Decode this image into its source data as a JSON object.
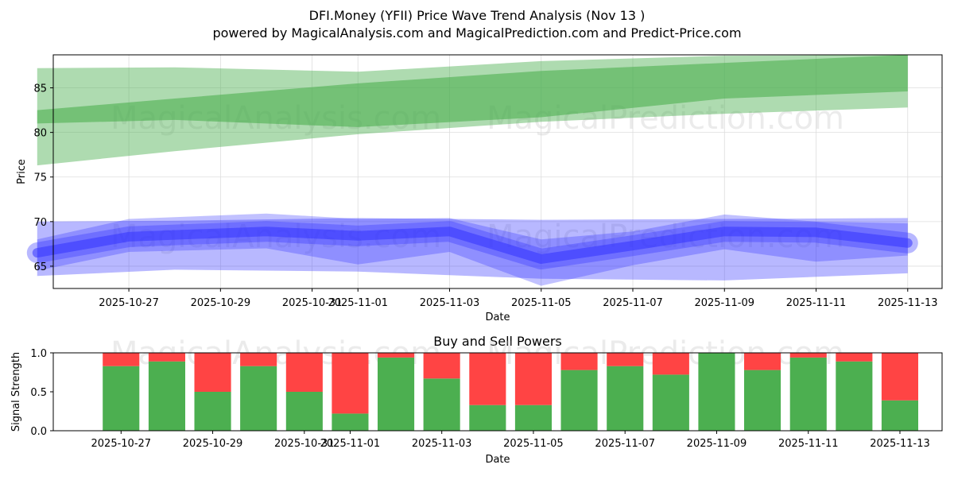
{
  "title": "DFI.Money (YFII) Price Wave Trend Analysis (Nov 13 )",
  "subtitle": "powered by MagicalAnalysis.com and MagicalPrediction.com and Predict-Price.com",
  "watermarks": [
    "MagicalAnalysis.com",
    "MagicalPrediction.com"
  ],
  "colors": {
    "green_band": "#4caf50",
    "blue_band": "#3333ff",
    "buy": "#4caf50",
    "sell": "#ff4444",
    "grid": "#dddddd"
  },
  "chart_data": [
    {
      "type": "area",
      "title": "",
      "xlabel": "Date",
      "ylabel": "Price",
      "ylim": [
        62.5,
        88.7
      ],
      "xlim": [
        "2025-10-25.35",
        "2025-11-13.75"
      ],
      "yticks": [
        65,
        70,
        75,
        80,
        85
      ],
      "xticks": [
        "2025-10-27",
        "2025-10-29",
        "2025-10-31",
        "2025-11-01",
        "2025-11-03",
        "2025-11-05",
        "2025-11-07",
        "2025-11-09",
        "2025-11-11",
        "2025-11-13"
      ],
      "grid": true,
      "series": [
        {
          "name": "green-outer-band",
          "x": [
            "2025-10-25",
            "2025-10-28",
            "2025-11-01",
            "2025-11-05",
            "2025-11-09",
            "2025-11-13"
          ],
          "upper": [
            87.2,
            87.3,
            86.8,
            88.0,
            88.6,
            88.7
          ],
          "lower": [
            76.3,
            77.9,
            79.8,
            81.2,
            82.1,
            82.8
          ]
        },
        {
          "name": "green-inner-band",
          "x": [
            "2025-10-25",
            "2025-10-28",
            "2025-11-01",
            "2025-11-05",
            "2025-11-09",
            "2025-11-13"
          ],
          "upper": [
            82.5,
            83.8,
            85.5,
            86.9,
            87.8,
            88.7
          ],
          "lower": [
            81.0,
            81.4,
            80.6,
            81.7,
            83.8,
            84.6
          ]
        },
        {
          "name": "blue-outer-band",
          "x": [
            "2025-10-25",
            "2025-10-28",
            "2025-11-01",
            "2025-11-05",
            "2025-11-09",
            "2025-11-13"
          ],
          "upper": [
            70.0,
            70.1,
            70.4,
            70.2,
            70.3,
            70.4
          ],
          "lower": [
            63.9,
            64.6,
            64.4,
            63.6,
            63.4,
            64.2
          ]
        },
        {
          "name": "blue-mid-band",
          "x": [
            "2025-10-25",
            "2025-10-27",
            "2025-10-30",
            "2025-11-01",
            "2025-11-03",
            "2025-11-05",
            "2025-11-07",
            "2025-11-09",
            "2025-11-11",
            "2025-11-13"
          ],
          "upper": [
            68.0,
            70.3,
            70.9,
            70.3,
            70.4,
            68.0,
            68.9,
            70.8,
            70.0,
            69.8
          ],
          "lower": [
            64.5,
            66.6,
            67.0,
            65.2,
            66.6,
            62.8,
            65.1,
            66.9,
            65.5,
            66.2
          ]
        },
        {
          "name": "blue-core-line",
          "x": [
            "2025-10-25",
            "2025-10-27",
            "2025-10-30",
            "2025-11-01",
            "2025-11-03",
            "2025-11-05",
            "2025-11-07",
            "2025-11-09",
            "2025-11-11",
            "2025-11-13"
          ],
          "values": [
            66.5,
            68.3,
            68.9,
            68.4,
            68.9,
            65.8,
            67.3,
            68.9,
            68.8,
            67.6
          ]
        }
      ]
    },
    {
      "type": "bar",
      "title": "Buy and Sell Powers",
      "xlabel": "Date",
      "ylabel": "Signal Strength",
      "ylim": [
        0,
        1.0
      ],
      "yticks": [
        "0.0",
        "0.5",
        "1.0"
      ],
      "xticks": [
        "2025-10-27",
        "2025-10-29",
        "2025-10-31",
        "2025-11-01",
        "2025-11-03",
        "2025-11-05",
        "2025-11-07",
        "2025-11-09",
        "2025-11-11",
        "2025-11-13"
      ],
      "categories": [
        "2025-10-27",
        "2025-10-28",
        "2025-10-29",
        "2025-10-30",
        "2025-10-31",
        "2025-11-01",
        "2025-11-02",
        "2025-11-03",
        "2025-11-04",
        "2025-11-05",
        "2025-11-06",
        "2025-11-07",
        "2025-11-08",
        "2025-11-09",
        "2025-11-10",
        "2025-11-11",
        "2025-11-12",
        "2025-11-13"
      ],
      "series": [
        {
          "name": "Buy",
          "values": [
            0.83,
            0.89,
            0.5,
            0.83,
            0.5,
            0.22,
            0.94,
            0.67,
            0.33,
            0.33,
            0.78,
            0.83,
            0.72,
            1.0,
            0.78,
            0.94,
            0.89,
            0.39
          ]
        },
        {
          "name": "Sell",
          "values": [
            0.17,
            0.11,
            0.5,
            0.17,
            0.5,
            0.78,
            0.06,
            0.33,
            0.67,
            0.67,
            0.22,
            0.17,
            0.28,
            0.0,
            0.22,
            0.06,
            0.11,
            0.61
          ]
        }
      ]
    }
  ]
}
